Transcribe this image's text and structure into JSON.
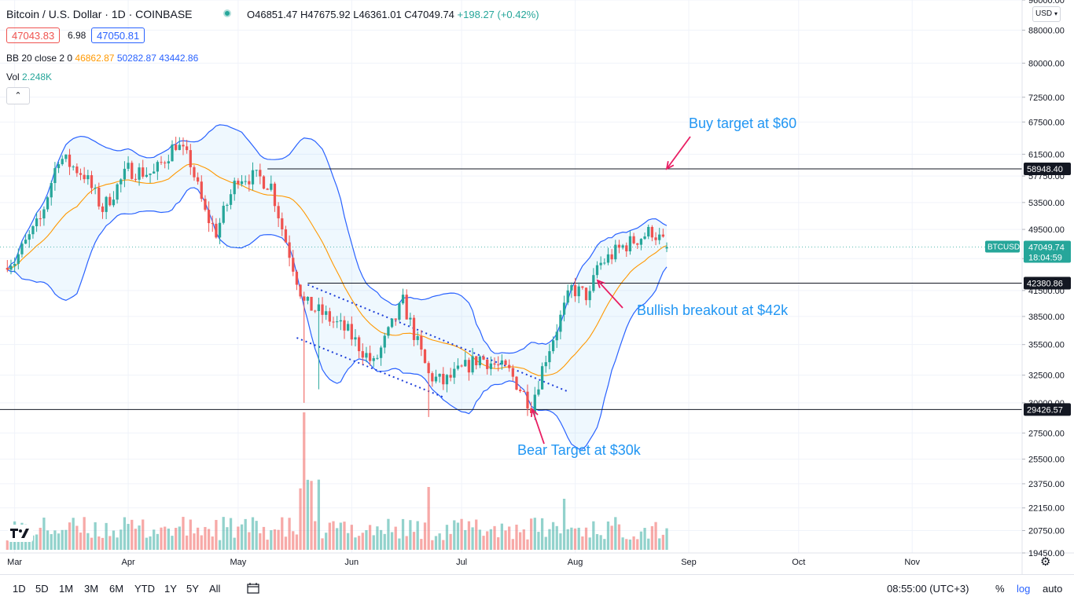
{
  "header": {
    "title": "Bitcoin / U.S. Dollar · 1D · COINBASE",
    "ohlc": {
      "open": "O46851.47",
      "high": "H47675.92",
      "low": "L46361.01",
      "close": "C47049.74",
      "change": "+198.27 (+0.42%)"
    },
    "sell_price": "47043.83",
    "spread": "6.98",
    "buy_price": "47050.81"
  },
  "indicators": {
    "bb_label": "BB 20 close 2 0",
    "bb_basis": "46862.87",
    "bb_upper": "50282.87",
    "bb_lower": "43442.86",
    "vol_label": "Vol",
    "vol_value": "2.248K",
    "collapse_icon": "chevron-up-icon"
  },
  "currency_selector": "USD",
  "price_axis": {
    "ticks": [
      "96000.00",
      "88000.00",
      "80000.00",
      "72500.00",
      "67500.00",
      "61500.00",
      "57750.00",
      "53500.00",
      "49500.00",
      "45500.00",
      "41500.00",
      "38500.00",
      "35500.00",
      "32500.00",
      "30000.00",
      "27500.00",
      "25500.00",
      "23750.00",
      "22150.00",
      "20750.00",
      "19450.00"
    ],
    "current_symbol": "BTCUSD",
    "current_price": "47049.74",
    "countdown": "18:04:59",
    "level_labels": [
      "58948.40",
      "42380.86",
      "29426.57"
    ]
  },
  "time_axis": {
    "labels": [
      "Mar",
      "Apr",
      "May",
      "Jun",
      "Jul",
      "Aug",
      "Sep",
      "Oct",
      "Nov"
    ]
  },
  "annotations": [
    {
      "text": "Buy target at $60",
      "color": "#2196f3"
    },
    {
      "text": "Bullish breakout at $42k",
      "color": "#2196f3"
    },
    {
      "text": "Bear Target at $30k",
      "color": "#2196f3"
    }
  ],
  "bottom_bar": {
    "ranges": [
      "1D",
      "5D",
      "1M",
      "3M",
      "6M",
      "YTD",
      "1Y",
      "5Y",
      "All"
    ],
    "clock": "08:55:00 (UTC+3)",
    "percent": "%",
    "log": "log",
    "auto": "auto"
  },
  "colors": {
    "up": "#26a69a",
    "down": "#ef5350",
    "band": "#2962ff",
    "basis": "#ff9800",
    "annotation": "#2196f3",
    "arrow": "#e91e63"
  },
  "chart_data": {
    "type": "candlestick",
    "title": "Bitcoin / U.S. Dollar · 1D · COINBASE",
    "scale": "log",
    "ylim": [
      19450,
      96000
    ],
    "xlim": [
      "2021-02-25",
      "2021-12-01"
    ],
    "horizontal_levels": [
      58948.4,
      42380.86,
      29426.57
    ],
    "waypoints": {
      "dates": [
        "2021-03-01",
        "2021-03-08",
        "2021-03-13",
        "2021-03-20",
        "2021-03-25",
        "2021-04-01",
        "2021-04-08",
        "2021-04-14",
        "2021-04-18",
        "2021-04-22",
        "2021-04-25",
        "2021-05-01",
        "2021-05-07",
        "2021-05-10",
        "2021-05-13",
        "2021-05-19",
        "2021-05-24",
        "2021-05-31",
        "2021-06-07",
        "2021-06-15",
        "2021-06-22",
        "2021-06-26",
        "2021-07-06",
        "2021-07-14",
        "2021-07-20",
        "2021-07-24",
        "2021-07-31",
        "2021-08-05",
        "2021-08-07",
        "2021-08-14",
        "2021-08-22",
        "2021-08-26"
      ],
      "close": [
        45200,
        50900,
        61100,
        58000,
        52500,
        58800,
        58100,
        63500,
        60000,
        51800,
        49100,
        57800,
        57400,
        56200,
        49700,
        40000,
        38800,
        36800,
        33500,
        40100,
        32500,
        31800,
        34200,
        32800,
        29800,
        34300,
        41700,
        40800,
        44500,
        47100,
        49300,
        47049.74
      ]
    },
    "bollinger_bands": {
      "period": 20,
      "stddev": 2,
      "last_basis": 46862.87,
      "last_upper": 50282.87,
      "last_lower": 43442.86
    },
    "volume_last": "2.248K"
  }
}
